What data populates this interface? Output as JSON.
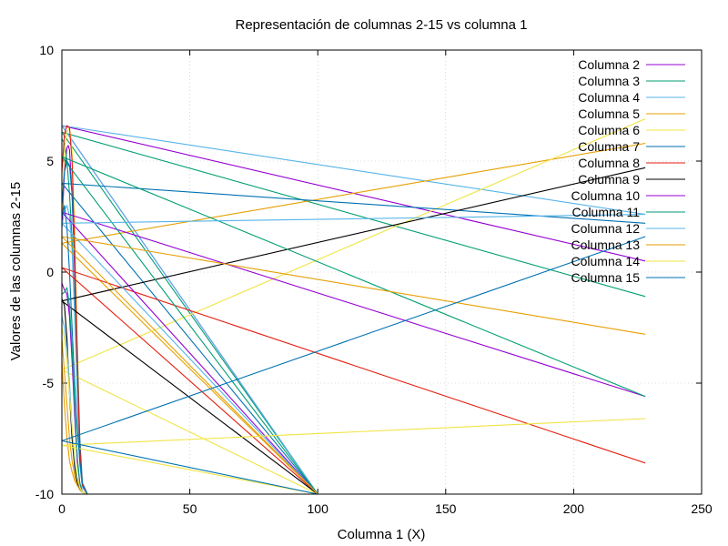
{
  "chart_data": {
    "type": "line",
    "title": "Representación de columnas 2-15 vs columna 1",
    "xlabel": "Columna 1 (X)",
    "ylabel": "Valores de las columnas 2-15",
    "xlim": [
      0,
      250
    ],
    "ylim": [
      -10,
      10
    ],
    "xticks": [
      0,
      50,
      100,
      150,
      200,
      250
    ],
    "yticks": [
      -10,
      -5,
      0,
      5,
      10
    ],
    "grid": true,
    "legend_position": "top-right",
    "series": [
      {
        "name": "Columna 2",
        "color": "#9400d3",
        "x": [
          0,
          1,
          2,
          2.5,
          3,
          4,
          5,
          6,
          7,
          8,
          10,
          100,
          0,
          228
        ],
        "y": [
          2.0,
          4.5,
          5.6,
          5.7,
          5.5,
          3.5,
          0,
          -5,
          -8.5,
          -9.6,
          -10,
          -10,
          6.6,
          0.5
        ]
      },
      {
        "name": "Columna 3",
        "color": "#009e73",
        "x": [
          0,
          1,
          2,
          3,
          4,
          5,
          6,
          7,
          8,
          10,
          100,
          0,
          228
        ],
        "y": [
          6.0,
          5.8,
          5.0,
          3.5,
          1.5,
          -1.5,
          -5,
          -8.5,
          -9.7,
          -10,
          -10,
          6.3,
          -1.1
        ]
      },
      {
        "name": "Columna 4",
        "color": "#56b4e9",
        "x": [
          0,
          1,
          2,
          3,
          4,
          5,
          6,
          7,
          8,
          10,
          100,
          0,
          228
        ],
        "y": [
          2.0,
          2.8,
          3.0,
          2.5,
          1.0,
          -2,
          -5.5,
          -8.7,
          -9.7,
          -10,
          -10,
          6.6,
          2.6
        ]
      },
      {
        "name": "Columna 5",
        "color": "#e69f00",
        "x": [
          0,
          1,
          2,
          3,
          4,
          5,
          6,
          7,
          8,
          10,
          100,
          0,
          228
        ],
        "y": [
          -4.0,
          -6.0,
          -7.5,
          -8.5,
          -9.0,
          -9.4,
          -9.6,
          -9.8,
          -9.9,
          -10,
          -10,
          1.3,
          5.8
        ]
      },
      {
        "name": "Columna 6",
        "color": "#f0e442",
        "x": [
          0,
          1,
          2,
          3,
          4,
          5,
          6,
          7,
          8,
          10,
          100,
          0,
          228
        ],
        "y": [
          2.5,
          5.5,
          6.3,
          6.5,
          5.5,
          2.0,
          -3,
          -7.5,
          -9.5,
          -10,
          -10,
          -4.4,
          6.9
        ]
      },
      {
        "name": "Columna 7",
        "color": "#0072b2",
        "x": [
          0,
          1,
          2,
          3,
          4,
          5,
          6,
          7,
          8,
          10,
          100,
          0,
          228
        ],
        "y": [
          3.0,
          4.5,
          5.0,
          4.8,
          3.5,
          0.5,
          -3.5,
          -7.5,
          -9.5,
          -10,
          -10,
          4.0,
          2.2
        ]
      },
      {
        "name": "Columna 8",
        "color": "#e51e10",
        "x": [
          0,
          1,
          2,
          3,
          4,
          5,
          6,
          7,
          8,
          10,
          100,
          0,
          228
        ],
        "y": [
          4.5,
          6.2,
          6.6,
          6.5,
          5.0,
          1.0,
          -4,
          -8,
          -9.6,
          -10,
          -10,
          0.2,
          -8.6
        ]
      },
      {
        "name": "Columna 9",
        "color": "#000000",
        "x": [
          0,
          1,
          2,
          3,
          4,
          5,
          6,
          7,
          8,
          10,
          100,
          0,
          228
        ],
        "y": [
          -1.2,
          -1.5,
          -3.0,
          -5.5,
          -7.5,
          -8.8,
          -9.5,
          -9.8,
          -9.9,
          -10,
          -10,
          -1.3,
          4.7
        ]
      },
      {
        "name": "Columna 10",
        "color": "#9400d3",
        "x": [
          0,
          1,
          2,
          3,
          4,
          5,
          6,
          7,
          8,
          10,
          100,
          0,
          228
        ],
        "y": [
          -0.5,
          -0.8,
          -1.0,
          -2.0,
          -4.0,
          -6.5,
          -8.5,
          -9.5,
          -9.9,
          -10,
          -10,
          2.7,
          -5.6
        ]
      },
      {
        "name": "Columna 11",
        "color": "#009e73",
        "x": [
          0,
          1,
          2,
          3,
          4,
          5,
          6,
          7,
          8,
          10,
          100,
          0,
          228
        ],
        "y": [
          -1.0,
          -0.9,
          -0.7,
          -1.5,
          -3.5,
          -6.0,
          -8.3,
          -9.5,
          -9.9,
          -10,
          -10,
          5.2,
          -5.6
        ]
      },
      {
        "name": "Columna 12",
        "color": "#56b4e9",
        "x": [
          0,
          1,
          2,
          3,
          4,
          5,
          6,
          7,
          8,
          10,
          100,
          0,
          228
        ],
        "y": [
          -2.0,
          -2.5,
          -3.5,
          -5.0,
          -7.0,
          -8.5,
          -9.3,
          -9.7,
          -9.9,
          -10,
          -10,
          2.2,
          2.6
        ]
      },
      {
        "name": "Columna 13",
        "color": "#e69f00",
        "x": [
          0,
          1,
          2,
          3,
          4,
          5,
          6,
          7,
          8,
          10,
          100,
          0,
          228
        ],
        "y": [
          -3.0,
          -4.5,
          -6.0,
          -7.5,
          -8.5,
          -9.2,
          -9.6,
          -9.8,
          -9.9,
          -10,
          -10,
          1.6,
          -2.8
        ]
      },
      {
        "name": "Columna 14",
        "color": "#f0e442",
        "x": [
          0,
          1,
          2,
          3,
          4,
          5,
          6,
          7,
          8,
          10,
          100,
          0,
          228
        ],
        "y": [
          -2.5,
          -3.0,
          -4.0,
          -5.5,
          -7.0,
          -8.3,
          -9.2,
          -9.7,
          -9.9,
          -10,
          -10,
          -7.8,
          -6.6
        ]
      },
      {
        "name": "Columna 15",
        "color": "#0072b2",
        "x": [
          0,
          1,
          2,
          3,
          4,
          5,
          6,
          7,
          8,
          10,
          100,
          0,
          228
        ],
        "y": [
          2.5,
          3.0,
          2.0,
          0.0,
          -2.5,
          -5.0,
          -7.0,
          -8.5,
          -9.5,
          -10,
          -10,
          -7.6,
          1.6
        ]
      }
    ]
  }
}
